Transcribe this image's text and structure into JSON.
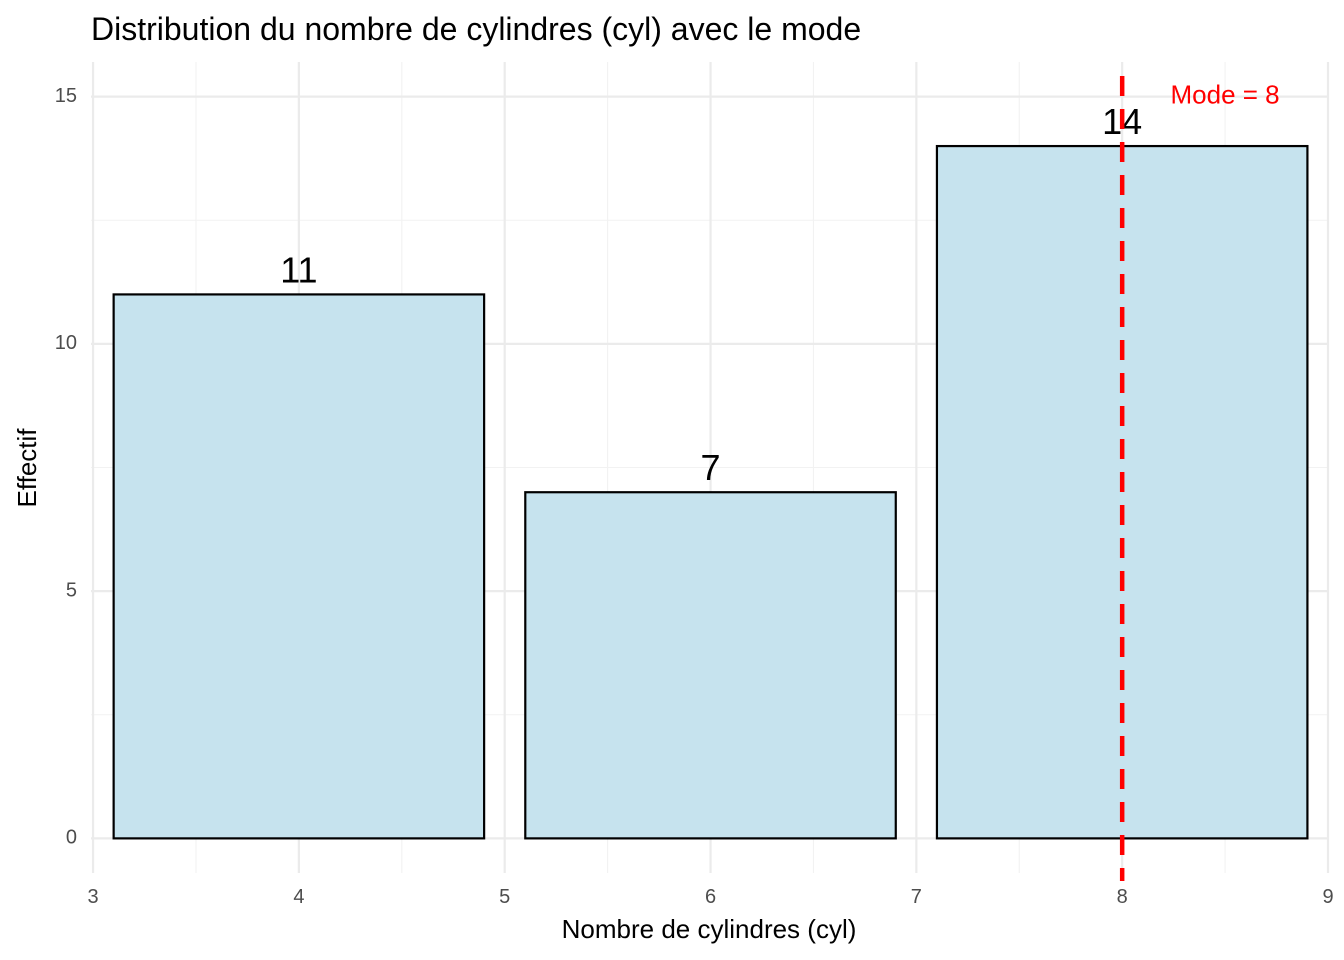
{
  "chart_data": {
    "type": "bar",
    "title": "Distribution du nombre de cylindres (cyl) avec le mode",
    "xlabel": "Nombre de cylindres (cyl)",
    "ylabel": "Effectif",
    "x": [
      4,
      6,
      8
    ],
    "values": [
      11,
      7,
      14
    ],
    "data_labels": [
      "11",
      "7",
      "14"
    ],
    "bar_width": 1.8,
    "xlim": [
      2.99,
      9.0
    ],
    "ylim": [
      -0.7,
      15.7
    ],
    "x_ticks": [
      3,
      4,
      5,
      6,
      7,
      8,
      9
    ],
    "x_tick_labels": [
      "3",
      "4",
      "5",
      "6",
      "7",
      "8",
      "9"
    ],
    "y_ticks": [
      0,
      5,
      10,
      15
    ],
    "y_tick_labels": [
      "0",
      "5",
      "10",
      "15"
    ],
    "grid": true,
    "bar_fill": "#c6e3ee",
    "bar_edge": "#000000",
    "mode_line": {
      "x": 8,
      "color": "#ff0000",
      "style": "dashed",
      "label": "Mode = 8",
      "label_x": 8.5,
      "label_y": 15
    }
  }
}
